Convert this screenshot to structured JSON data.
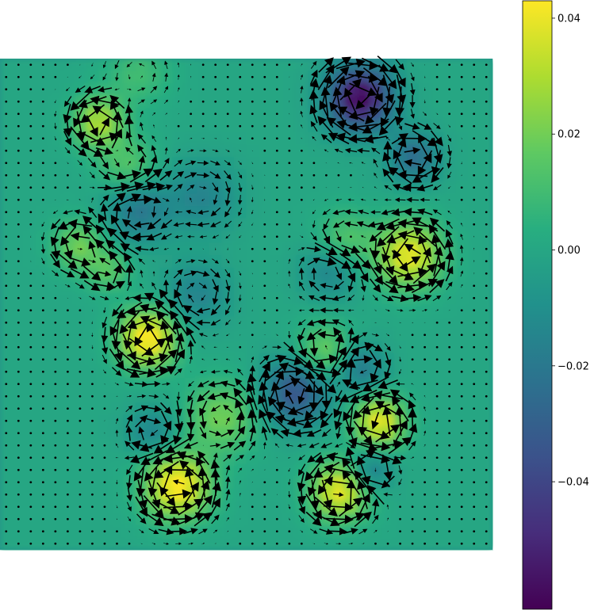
{
  "chart_data": {
    "type": "heatmap",
    "subtype": "vector-field-over-scalar-field",
    "title": "",
    "xlabel": "",
    "ylabel": "",
    "axes_visible": false,
    "grid": false,
    "colormap": "viridis",
    "grid_size": [
      40,
      40
    ],
    "colorbar": {
      "placement": "right",
      "range": [
        -0.062,
        0.043
      ],
      "ticks": [
        {
          "value": 0.04,
          "label": "0.04"
        },
        {
          "value": 0.02,
          "label": "0.02"
        },
        {
          "value": 0.0,
          "label": "0.00"
        },
        {
          "value": -0.02,
          "label": "−0.02"
        },
        {
          "value": -0.04,
          "label": "−0.04"
        }
      ]
    },
    "features": [
      {
        "x": 0.28,
        "y": 0.03,
        "sigma": 0.045,
        "value": 0.01
      },
      {
        "x": 0.2,
        "y": 0.13,
        "sigma": 0.035,
        "value": 0.03
      },
      {
        "x": 0.26,
        "y": 0.22,
        "sigma": 0.04,
        "value": 0.015
      },
      {
        "x": 0.73,
        "y": 0.08,
        "sigma": 0.045,
        "value": -0.06
      },
      {
        "x": 0.84,
        "y": 0.2,
        "sigma": 0.035,
        "value": -0.025
      },
      {
        "x": 0.41,
        "y": 0.28,
        "sigma": 0.05,
        "value": -0.015
      },
      {
        "x": 0.28,
        "y": 0.31,
        "sigma": 0.045,
        "value": -0.02
      },
      {
        "x": 0.16,
        "y": 0.38,
        "sigma": 0.035,
        "value": 0.02
      },
      {
        "x": 0.83,
        "y": 0.4,
        "sigma": 0.045,
        "value": 0.04
      },
      {
        "x": 0.7,
        "y": 0.37,
        "sigma": 0.04,
        "value": 0.015
      },
      {
        "x": 0.67,
        "y": 0.43,
        "sigma": 0.04,
        "value": -0.015
      },
      {
        "x": 0.4,
        "y": 0.48,
        "sigma": 0.045,
        "value": -0.015
      },
      {
        "x": 0.3,
        "y": 0.57,
        "sigma": 0.04,
        "value": 0.045
      },
      {
        "x": 0.66,
        "y": 0.6,
        "sigma": 0.04,
        "value": 0.02
      },
      {
        "x": 0.73,
        "y": 0.63,
        "sigma": 0.035,
        "value": -0.02
      },
      {
        "x": 0.6,
        "y": 0.68,
        "sigma": 0.045,
        "value": -0.035
      },
      {
        "x": 0.77,
        "y": 0.74,
        "sigma": 0.035,
        "value": 0.04
      },
      {
        "x": 0.45,
        "y": 0.73,
        "sigma": 0.05,
        "value": 0.02
      },
      {
        "x": 0.31,
        "y": 0.76,
        "sigma": 0.035,
        "value": -0.015
      },
      {
        "x": 0.36,
        "y": 0.87,
        "sigma": 0.045,
        "value": 0.045
      },
      {
        "x": 0.69,
        "y": 0.88,
        "sigma": 0.04,
        "value": 0.04
      },
      {
        "x": 0.75,
        "y": 0.84,
        "sigma": 0.03,
        "value": -0.02
      },
      {
        "x": 0.22,
        "y": 0.43,
        "sigma": 0.03,
        "value": 0.015
      }
    ]
  }
}
